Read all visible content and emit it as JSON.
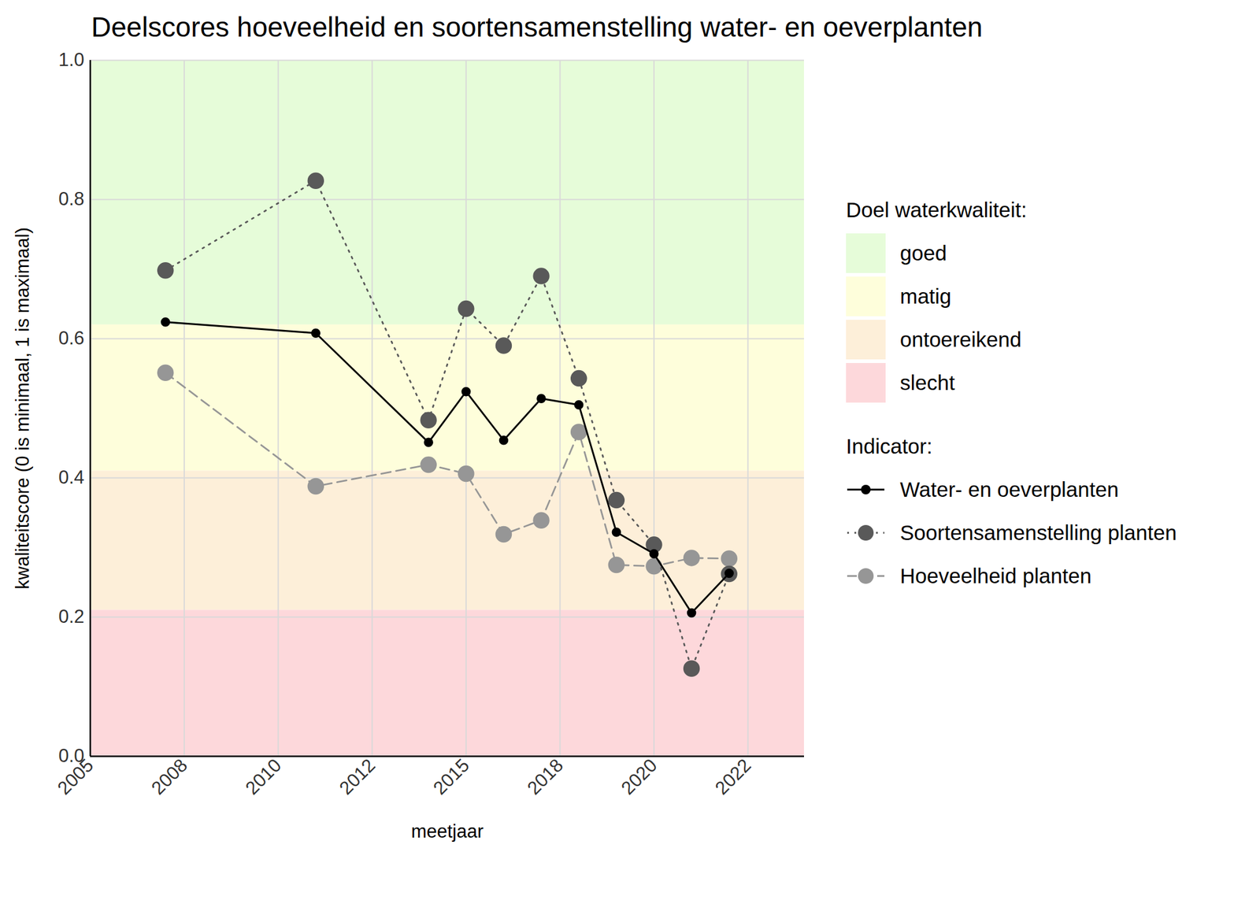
{
  "chart_data": {
    "type": "line",
    "title": "Deelscores hoeveelheid en soortensamenstelling water- en oeverplanten",
    "x_label": "meetjaar",
    "y_label": "kwaliteitscore (0 is minimaal, 1 is maximaal)",
    "x": [
      2007,
      2011,
      2014,
      2015,
      2016,
      2017,
      2018,
      2019,
      2020,
      2021,
      2022
    ],
    "series": [
      {
        "name": "Water- en oeverplanten",
        "color": "#000000",
        "line_style": "solid",
        "marker": "circle",
        "values": [
          0.624,
          0.608,
          0.451,
          0.524,
          0.454,
          0.514,
          0.505,
          0.322,
          0.291,
          0.206,
          0.263
        ]
      },
      {
        "name": "Soortensamenstelling planten",
        "color": "#595959",
        "line_style": "dotted",
        "marker": "circle",
        "values": [
          0.698,
          0.827,
          0.483,
          0.643,
          0.59,
          0.69,
          0.543,
          0.368,
          0.304,
          0.126,
          0.262
        ]
      },
      {
        "name": "Hoeveelheid planten",
        "color": "#969696",
        "line_style": "dashed",
        "marker": "circle",
        "values": [
          0.551,
          0.388,
          0.419,
          0.406,
          0.319,
          0.339,
          0.466,
          0.275,
          0.273,
          0.285,
          0.284
        ]
      }
    ],
    "series_title": "Indicator:",
    "bands_title": "Doel waterkwaliteit:",
    "bands": [
      {
        "name": "goed",
        "color": "#e6fcd9",
        "from": 0.62,
        "to": 1.0
      },
      {
        "name": "matig",
        "color": "#fefedb",
        "from": 0.41,
        "to": 0.62
      },
      {
        "name": "ontoereikend",
        "color": "#fdefd9",
        "from": 0.21,
        "to": 0.41
      },
      {
        "name": "slecht",
        "color": "#fdd8db",
        "from": 0.0,
        "to": 0.21
      }
    ],
    "xlim": [
      2005,
      2024
    ],
    "xticks": [
      2005,
      {
        "value": 2007.5,
        "label": "2008"
      },
      2010,
      {
        "value": 2012.5,
        "label": "2012"
      },
      2015,
      {
        "value": 2017.5,
        "label": "2018"
      },
      2020,
      {
        "value": 2022.5,
        "label": "2022"
      }
    ],
    "ylim": [
      0,
      1
    ],
    "yticks": [
      {
        "value": 0,
        "label": "0.0"
      },
      0.2,
      0.4,
      0.6,
      0.8,
      {
        "value": 1,
        "label": "1.0"
      }
    ],
    "grid": true,
    "legend": "right"
  }
}
